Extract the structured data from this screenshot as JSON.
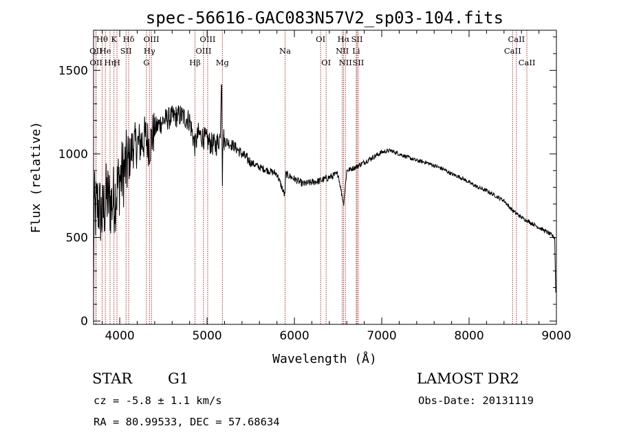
{
  "colors": {
    "line_marker": "#a01818",
    "spectrum": "#000000"
  },
  "chart_data": {
    "type": "line",
    "title": "spec-56616-GAC083N57V2_sp03-104.fits",
    "xlabel": "Wavelength (Å)",
    "ylabel": "Flux (relative)",
    "xlim": [
      3700,
      9000
    ],
    "ylim": [
      -20,
      1740
    ],
    "x_ticks": [
      4000,
      5000,
      6000,
      7000,
      8000,
      9000
    ],
    "y_ticks": [
      0,
      500,
      1000,
      1500
    ],
    "grid": false,
    "spectrum_anchors": {
      "x": [
        3700,
        3705,
        3720,
        3750,
        3800,
        3850,
        3900,
        3950,
        4000,
        4050,
        4100,
        4150,
        4200,
        4300,
        4340,
        4400,
        4500,
        4600,
        4700,
        4800,
        4861,
        4900,
        5000,
        5050,
        5100,
        5150,
        5167,
        5175,
        5183,
        5200,
        5300,
        5400,
        5500,
        5600,
        5700,
        5800,
        5890,
        5900,
        6000,
        6100,
        6200,
        6300,
        6400,
        6500,
        6563,
        6600,
        6700,
        6800,
        6900,
        7000,
        7100,
        7200,
        7300,
        7400,
        7500,
        7600,
        7700,
        7800,
        7900,
        8000,
        8100,
        8200,
        8300,
        8400,
        8500,
        8600,
        8700,
        8800,
        8900,
        8980,
        8995
      ],
      "y": [
        80,
        700,
        650,
        700,
        620,
        750,
        700,
        750,
        850,
        900,
        950,
        1050,
        1050,
        1100,
        1050,
        1150,
        1200,
        1220,
        1230,
        1200,
        1050,
        1120,
        1080,
        1060,
        1050,
        1100,
        1550,
        800,
        1100,
        1080,
        1050,
        1000,
        950,
        920,
        900,
        880,
        750,
        880,
        850,
        820,
        830,
        840,
        860,
        880,
        700,
        900,
        920,
        950,
        980,
        1010,
        1020,
        1000,
        980,
        960,
        950,
        930,
        910,
        880,
        860,
        830,
        800,
        780,
        750,
        720,
        660,
        620,
        590,
        560,
        530,
        500,
        100
      ],
      "noise_amplitude_by_x": {
        "lt_4100": 220,
        "lt_4400": 140,
        "lt_5200": 70,
        "lt_5500": 35,
        "lt_6500": 22,
        "lt_7000": 16,
        "rest": 12
      }
    },
    "spectral_lines": [
      {
        "label": "Hθ",
        "wavelength": 3798,
        "row": 1
      },
      {
        "label": "OII",
        "wavelength": 3727,
        "row": 2
      },
      {
        "label": "OII",
        "wavelength": 3729,
        "row": 3
      },
      {
        "label": "He",
        "wavelength": 3835,
        "row": 2
      },
      {
        "label": "Hη",
        "wavelength": 3889,
        "row": 3
      },
      {
        "label": "K",
        "wavelength": 3934,
        "row": 1
      },
      {
        "label": "H",
        "wavelength": 3968,
        "row": 3
      },
      {
        "label": "SII",
        "wavelength": 4072,
        "row": 2
      },
      {
        "label": "Hδ",
        "wavelength": 4102,
        "row": 1
      },
      {
        "label": "OIII",
        "wavelength": 4363,
        "row": 1
      },
      {
        "label": "Hγ",
        "wavelength": 4340,
        "row": 2
      },
      {
        "label": "G",
        "wavelength": 4305,
        "row": 3
      },
      {
        "label": "Hβ",
        "wavelength": 4861,
        "row": 3
      },
      {
        "label": "OIII",
        "wavelength": 4959,
        "row": 2
      },
      {
        "label": "OIII",
        "wavelength": 5007,
        "row": 1
      },
      {
        "label": "Mg",
        "wavelength": 5175,
        "row": 3
      },
      {
        "label": "Na",
        "wavelength": 5893,
        "row": 2
      },
      {
        "label": "OI",
        "wavelength": 6300,
        "row": 1
      },
      {
        "label": "OI",
        "wavelength": 6363,
        "row": 3
      },
      {
        "label": "NII",
        "wavelength": 6548,
        "row": 2
      },
      {
        "label": "Hα",
        "wavelength": 6563,
        "row": 1
      },
      {
        "label": "NII",
        "wavelength": 6584,
        "row": 3
      },
      {
        "label": "SII",
        "wavelength": 6717,
        "row": 1
      },
      {
        "label": "Li",
        "wavelength": 6708,
        "row": 2
      },
      {
        "label": "SII",
        "wavelength": 6731,
        "row": 3
      },
      {
        "label": "CaII",
        "wavelength": 8542,
        "row": 1
      },
      {
        "label": "CaII",
        "wavelength": 8498,
        "row": 2
      },
      {
        "label": "CaII",
        "wavelength": 8662,
        "row": 3
      }
    ]
  },
  "info": {
    "class_label": "STAR",
    "subclass": "G1",
    "redshift_line": "cz = -5.8 ± 1.1 km/s",
    "coords_line": "RA =  80.99533, DEC =  57.68634",
    "survey": "LAMOST DR2",
    "obs_date_line": "Obs-Date: 20131119"
  }
}
